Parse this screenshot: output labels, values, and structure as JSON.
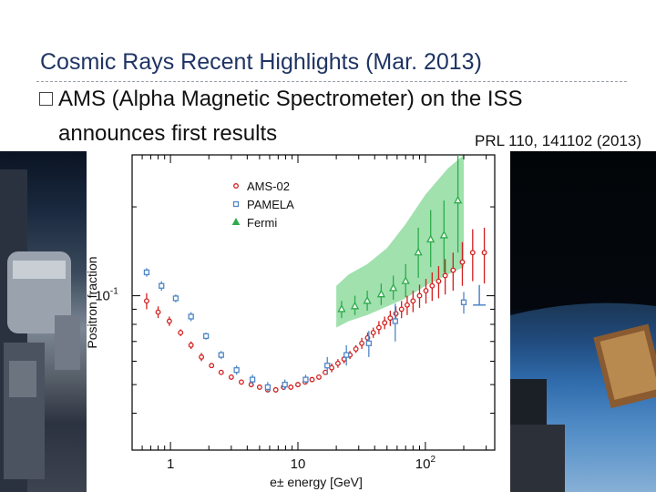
{
  "slide": {
    "title": "Cosmic Rays Recent Highlights (Mar. 2013)",
    "bullet_line1": "AMS (Alpha Magnetic Spectrometer) on the ISS",
    "bullet_line2": "announces first results",
    "citation": "PRL 110, 141102 (2013)"
  },
  "colors": {
    "title": "#1f3464",
    "ams": "#d31f1f",
    "pamela": "#4f86c6",
    "fermi": "#2daa4a",
    "fermi_band": "#8fdca0"
  },
  "chart_data": {
    "type": "scatter",
    "title": "",
    "xlabel": "e± energy [GeV]",
    "ylabel": "Positron fraction",
    "xscale": "log",
    "yscale": "log",
    "xlim": [
      0.5,
      350
    ],
    "ylim": [
      0.03,
      0.3
    ],
    "xticks": [
      {
        "value": 1,
        "label": "1"
      },
      {
        "value": 10,
        "label": "10"
      },
      {
        "value": 100,
        "label": "10",
        "sup": "2"
      }
    ],
    "yticks": [
      {
        "value": 0.1,
        "label": "10",
        "sup": "-1"
      }
    ],
    "legend_position": "top-left",
    "grid": false,
    "series": [
      {
        "name": "AMS-02",
        "marker": "circle",
        "color": "#d31f1f",
        "points": [
          {
            "x": 0.65,
            "y": 0.096,
            "err": 0.006
          },
          {
            "x": 0.8,
            "y": 0.088,
            "err": 0.004
          },
          {
            "x": 0.98,
            "y": 0.082,
            "err": 0.003
          },
          {
            "x": 1.2,
            "y": 0.075,
            "err": 0.002
          },
          {
            "x": 1.45,
            "y": 0.068,
            "err": 0.002
          },
          {
            "x": 1.75,
            "y": 0.062,
            "err": 0.002
          },
          {
            "x": 2.1,
            "y": 0.058,
            "err": 0.001
          },
          {
            "x": 2.5,
            "y": 0.055,
            "err": 0.001
          },
          {
            "x": 3.0,
            "y": 0.053,
            "err": 0.001
          },
          {
            "x": 3.6,
            "y": 0.051,
            "err": 0.001
          },
          {
            "x": 4.3,
            "y": 0.05,
            "err": 0.001
          },
          {
            "x": 5.0,
            "y": 0.049,
            "err": 0.001
          },
          {
            "x": 5.8,
            "y": 0.048,
            "err": 0.001
          },
          {
            "x": 6.7,
            "y": 0.048,
            "err": 0.001
          },
          {
            "x": 7.7,
            "y": 0.049,
            "err": 0.001
          },
          {
            "x": 8.8,
            "y": 0.049,
            "err": 0.001
          },
          {
            "x": 10.0,
            "y": 0.05,
            "err": 0.001
          },
          {
            "x": 11.4,
            "y": 0.051,
            "err": 0.001
          },
          {
            "x": 12.9,
            "y": 0.052,
            "err": 0.001
          },
          {
            "x": 14.6,
            "y": 0.053,
            "err": 0.001
          },
          {
            "x": 16.4,
            "y": 0.055,
            "err": 0.001
          },
          {
            "x": 18.4,
            "y": 0.057,
            "err": 0.002
          },
          {
            "x": 20.6,
            "y": 0.059,
            "err": 0.002
          },
          {
            "x": 23.0,
            "y": 0.061,
            "err": 0.002
          },
          {
            "x": 25.6,
            "y": 0.063,
            "err": 0.002
          },
          {
            "x": 28.5,
            "y": 0.066,
            "err": 0.002
          },
          {
            "x": 31.7,
            "y": 0.069,
            "err": 0.003
          },
          {
            "x": 35.2,
            "y": 0.072,
            "err": 0.003
          },
          {
            "x": 39.0,
            "y": 0.075,
            "err": 0.003
          },
          {
            "x": 43.2,
            "y": 0.078,
            "err": 0.004
          },
          {
            "x": 47.9,
            "y": 0.081,
            "err": 0.004
          },
          {
            "x": 53.0,
            "y": 0.084,
            "err": 0.005
          },
          {
            "x": 58.7,
            "y": 0.087,
            "err": 0.005
          },
          {
            "x": 65.0,
            "y": 0.09,
            "err": 0.006
          },
          {
            "x": 72.0,
            "y": 0.093,
            "err": 0.007
          },
          {
            "x": 80.0,
            "y": 0.096,
            "err": 0.008
          },
          {
            "x": 90.0,
            "y": 0.1,
            "err": 0.009
          },
          {
            "x": 101.0,
            "y": 0.104,
            "err": 0.01
          },
          {
            "x": 113.0,
            "y": 0.108,
            "err": 0.012
          },
          {
            "x": 127.0,
            "y": 0.112,
            "err": 0.014
          },
          {
            "x": 143.0,
            "y": 0.117,
            "err": 0.016
          },
          {
            "x": 165.0,
            "y": 0.122,
            "err": 0.018
          },
          {
            "x": 195.0,
            "y": 0.13,
            "err": 0.022
          },
          {
            "x": 235.0,
            "y": 0.14,
            "err": 0.028
          },
          {
            "x": 290.0,
            "y": 0.14,
            "err": 0.03
          }
        ]
      },
      {
        "name": "PAMELA",
        "marker": "square",
        "color": "#4f86c6",
        "points": [
          {
            "x": 0.65,
            "y": 0.12,
            "err": 0.004
          },
          {
            "x": 0.85,
            "y": 0.108,
            "err": 0.004
          },
          {
            "x": 1.1,
            "y": 0.098,
            "err": 0.003
          },
          {
            "x": 1.45,
            "y": 0.085,
            "err": 0.003
          },
          {
            "x": 1.9,
            "y": 0.073,
            "err": 0.002
          },
          {
            "x": 2.5,
            "y": 0.063,
            "err": 0.002
          },
          {
            "x": 3.3,
            "y": 0.056,
            "err": 0.002
          },
          {
            "x": 4.4,
            "y": 0.052,
            "err": 0.002
          },
          {
            "x": 5.8,
            "y": 0.049,
            "err": 0.002
          },
          {
            "x": 7.9,
            "y": 0.05,
            "err": 0.002
          },
          {
            "x": 11.5,
            "y": 0.052,
            "err": 0.002
          },
          {
            "x": 17.0,
            "y": 0.058,
            "err": 0.004
          },
          {
            "x": 24.0,
            "y": 0.063,
            "err": 0.005
          },
          {
            "x": 36.0,
            "y": 0.069,
            "err": 0.007
          },
          {
            "x": 58.0,
            "y": 0.082,
            "err": 0.012
          },
          {
            "x": 200.0,
            "y": 0.095,
            "err": 0.008
          }
        ]
      },
      {
        "name": "Fermi",
        "marker": "triangle",
        "color": "#2daa4a",
        "band": [
          {
            "x": 20,
            "lo": 0.078,
            "hi": 0.108
          },
          {
            "x": 25,
            "lo": 0.082,
            "hi": 0.118
          },
          {
            "x": 35,
            "lo": 0.086,
            "hi": 0.128
          },
          {
            "x": 50,
            "lo": 0.092,
            "hi": 0.145
          },
          {
            "x": 70,
            "lo": 0.098,
            "hi": 0.175
          },
          {
            "x": 100,
            "lo": 0.108,
            "hi": 0.22
          },
          {
            "x": 150,
            "lo": 0.118,
            "hi": 0.27
          },
          {
            "x": 200,
            "lo": 0.125,
            "hi": 0.3
          }
        ],
        "points": [
          {
            "x": 22,
            "y": 0.09,
            "elo": 0.006,
            "ehi": 0.006
          },
          {
            "x": 28,
            "y": 0.092,
            "elo": 0.006,
            "ehi": 0.008
          },
          {
            "x": 35,
            "y": 0.096,
            "elo": 0.007,
            "ehi": 0.008
          },
          {
            "x": 45,
            "y": 0.101,
            "elo": 0.008,
            "ehi": 0.009
          },
          {
            "x": 56,
            "y": 0.106,
            "elo": 0.009,
            "ehi": 0.011
          },
          {
            "x": 70,
            "y": 0.112,
            "elo": 0.013,
            "ehi": 0.016
          },
          {
            "x": 88,
            "y": 0.14,
            "elo": 0.025,
            "ehi": 0.03
          },
          {
            "x": 110,
            "y": 0.155,
            "elo": 0.03,
            "ehi": 0.04
          },
          {
            "x": 140,
            "y": 0.16,
            "elo": 0.04,
            "ehi": 0.05
          },
          {
            "x": 180,
            "y": 0.21,
            "elo": 0.07,
            "ehi": 0.09
          }
        ]
      }
    ],
    "annotations": [
      {
        "type": "upper-limit",
        "x": 265,
        "y": 0.093,
        "color": "#4f86c6"
      }
    ]
  }
}
